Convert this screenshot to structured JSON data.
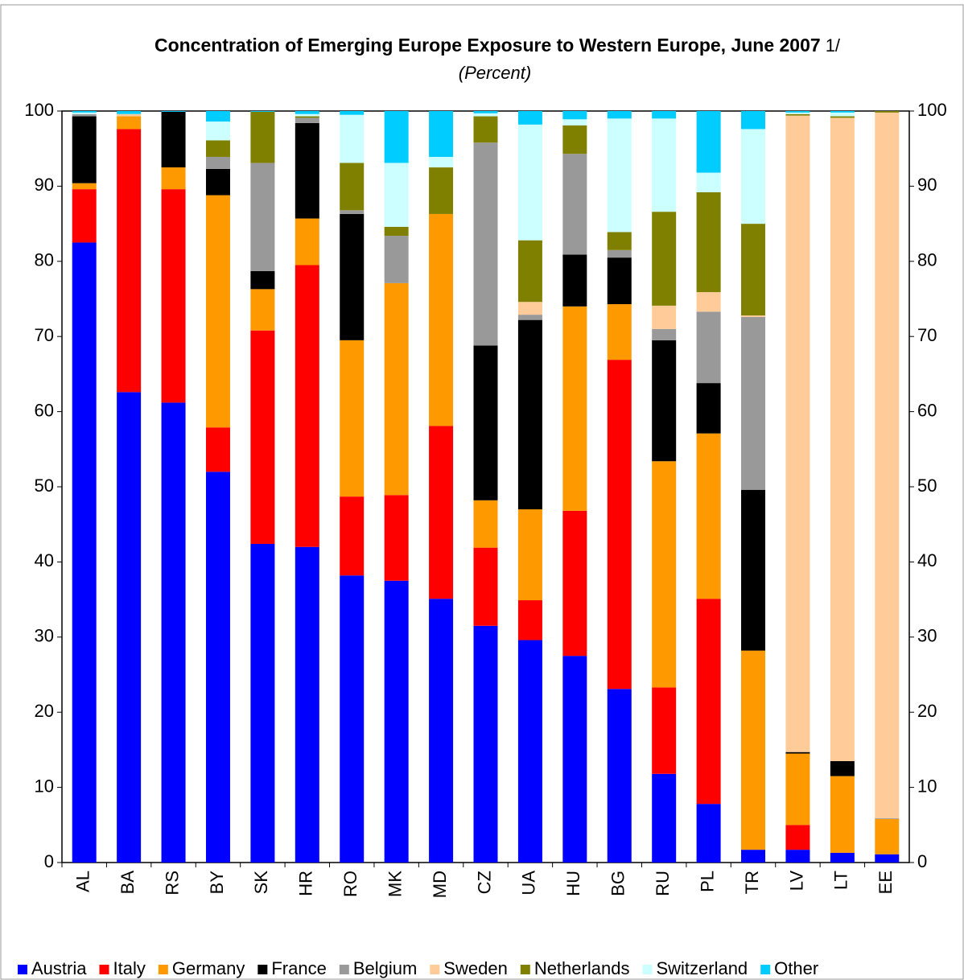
{
  "chart_data": {
    "type": "stacked_bar",
    "title": "Concentration of Emerging Europe Exposure to Western Europe, June 2007",
    "title_note": "1/",
    "subtitle": "(Percent)",
    "categories": [
      "AL",
      "BA",
      "RS",
      "BY",
      "SK",
      "HR",
      "RO",
      "MK",
      "MD",
      "CZ",
      "UA",
      "HU",
      "BG",
      "RU",
      "PL",
      "TR",
      "LV",
      "LT",
      "EE"
    ],
    "series": [
      {
        "name": "Austria",
        "color": "#0000ff",
        "values": [
          82.5,
          62.6,
          61.2,
          52.0,
          42.4,
          42.0,
          38.2,
          37.5,
          35.1,
          31.5,
          29.6,
          27.5,
          23.1,
          11.8,
          7.8,
          1.7,
          1.7,
          1.3,
          1.1
        ]
      },
      {
        "name": "Italy",
        "color": "#ff0000",
        "values": [
          7.1,
          35.0,
          28.4,
          5.9,
          28.4,
          37.5,
          10.5,
          11.4,
          23.0,
          10.4,
          5.3,
          19.3,
          43.8,
          11.5,
          27.3,
          0,
          3.3,
          0,
          0
        ]
      },
      {
        "name": "Germany",
        "color": "#ff9900",
        "values": [
          0.8,
          1.7,
          2.9,
          30.9,
          5.5,
          6.2,
          20.8,
          28.2,
          28.2,
          6.3,
          12.1,
          27.2,
          7.4,
          30.1,
          22.0,
          26.5,
          9.5,
          10.2,
          4.7
        ]
      },
      {
        "name": "France",
        "color": "#000000",
        "values": [
          8.9,
          0,
          7.4,
          3.5,
          2.4,
          12.7,
          16.8,
          0,
          0,
          20.6,
          25.2,
          6.9,
          6.2,
          16.1,
          6.7,
          21.4,
          0.2,
          2.0,
          0
        ]
      },
      {
        "name": "Belgium",
        "color": "#999999",
        "values": [
          0.3,
          0,
          0,
          1.6,
          14.4,
          0.7,
          0.5,
          6.3,
          0,
          27.0,
          0.7,
          13.4,
          1.0,
          1.5,
          9.5,
          23.0,
          0,
          0,
          0.1
        ]
      },
      {
        "name": "Sweden",
        "color": "#ffcc99",
        "values": [
          0,
          0.3,
          0,
          0,
          0,
          0,
          0,
          0,
          0,
          0,
          1.7,
          0,
          0,
          3.1,
          2.6,
          0.2,
          84.7,
          85.6,
          93.9
        ]
      },
      {
        "name": "Netherlands",
        "color": "#808000",
        "values": [
          0,
          0,
          0,
          2.2,
          6.8,
          0.2,
          6.3,
          1.2,
          6.2,
          3.5,
          8.2,
          3.8,
          2.4,
          12.5,
          13.3,
          12.2,
          0.2,
          0.2,
          0.2
        ]
      },
      {
        "name": "Switzerland",
        "color": "#ccffff",
        "values": [
          0.2,
          0,
          0,
          2.5,
          0,
          0.3,
          6.4,
          8.5,
          1.4,
          0.4,
          15.4,
          0.8,
          15.1,
          12.4,
          2.6,
          12.6,
          0.2,
          0.5,
          0
        ]
      },
      {
        "name": "Other",
        "color": "#00ccff",
        "values": [
          0.2,
          0.4,
          0.1,
          1.4,
          0.1,
          0.4,
          0.5,
          6.9,
          6.1,
          0.3,
          1.8,
          1.1,
          1.0,
          1.0,
          8.2,
          2.4,
          0.2,
          0.2,
          0
        ]
      }
    ],
    "ylim": [
      0,
      100
    ],
    "yticks": [
      0,
      10,
      20,
      30,
      40,
      50,
      60,
      70,
      80,
      90,
      100
    ],
    "y2lim": [
      0,
      100
    ],
    "y2ticks": [
      0,
      10,
      20,
      30,
      40,
      50,
      60,
      70,
      80,
      90,
      100
    ],
    "legend": "bottom"
  }
}
